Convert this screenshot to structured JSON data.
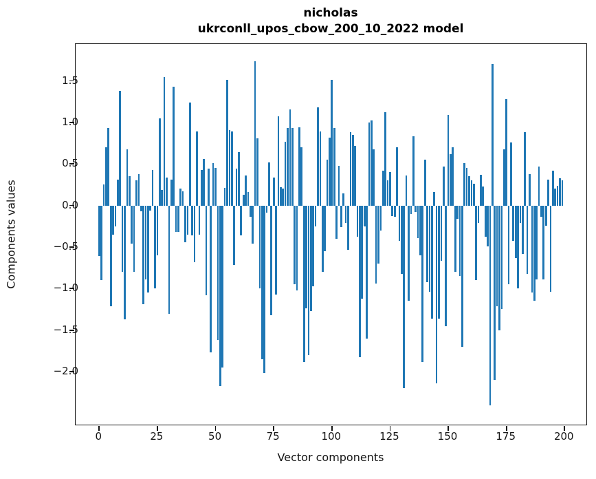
{
  "title": {
    "line1": "nicholas",
    "line2": "ukrconll_upos_cbow_200_10_2022 model"
  },
  "axes": {
    "xlabel": "Vector components",
    "ylabel": "Components values",
    "x_ticks": [
      {
        "value": 0,
        "label": "0"
      },
      {
        "value": 25,
        "label": "25"
      },
      {
        "value": 50,
        "label": "50"
      },
      {
        "value": 75,
        "label": "75"
      },
      {
        "value": 100,
        "label": "100"
      },
      {
        "value": 125,
        "label": "125"
      },
      {
        "value": 150,
        "label": "150"
      },
      {
        "value": 175,
        "label": "175"
      },
      {
        "value": 200,
        "label": "200"
      }
    ],
    "y_ticks": [
      {
        "value": 1.5,
        "label": "1.5"
      },
      {
        "value": 1.0,
        "label": "1.0"
      },
      {
        "value": 0.5,
        "label": "0.5"
      },
      {
        "value": 0.0,
        "label": "0.0"
      },
      {
        "value": -0.5,
        "label": "−0.5"
      },
      {
        "value": -1.0,
        "label": "−1.0"
      },
      {
        "value": -1.5,
        "label": "−1.5"
      },
      {
        "value": -2.0,
        "label": "−2.0"
      }
    ]
  },
  "style": {
    "bar_color": "#1f77b4",
    "spine_color": "#141414",
    "background": "#ffffff"
  },
  "chart_data": {
    "type": "bar",
    "title": "nicholas\nukrconll_upos_cbow_200_10_2022 model",
    "xlabel": "Vector components",
    "ylabel": "Components values",
    "xlim": [
      -10,
      209.5
    ],
    "ylim": [
      -2.64,
      1.94
    ],
    "grid": false,
    "legend": "none",
    "n_components": 200,
    "x_start": 0,
    "values": [
      -0.61,
      -0.9,
      0.25,
      0.7,
      0.93,
      -1.21,
      -0.35,
      -0.25,
      0.31,
      1.38,
      -0.8,
      -1.37,
      0.68,
      0.35,
      -0.46,
      -0.8,
      0.3,
      0.38,
      -0.07,
      -1.19,
      -0.89,
      -1.05,
      -0.06,
      0.43,
      -1.0,
      -0.6,
      1.05,
      0.19,
      1.55,
      0.34,
      -1.3,
      0.31,
      1.43,
      -0.32,
      -0.32,
      0.2,
      0.17,
      -0.44,
      -0.35,
      1.24,
      -0.36,
      -0.68,
      0.89,
      -0.35,
      0.43,
      0.56,
      -1.08,
      0.44,
      -1.77,
      0.51,
      0.45,
      -1.62,
      -2.17,
      -1.95,
      0.21,
      1.51,
      0.91,
      0.89,
      -0.72,
      0.44,
      0.64,
      -0.36,
      0.13,
      0.36,
      0.16,
      -0.14,
      -0.46,
      1.74,
      0.81,
      -1.0,
      -1.85,
      -2.02,
      -0.09,
      0.52,
      -1.32,
      0.34,
      -1.07,
      1.07,
      0.22,
      0.2,
      0.77,
      0.93,
      1.16,
      0.93,
      -0.95,
      -1.02,
      0.94,
      0.7,
      -1.88,
      -1.24,
      -1.8,
      -1.27,
      -0.97,
      -0.25,
      1.18,
      0.89,
      -0.8,
      -0.55,
      0.55,
      0.82,
      1.51,
      0.93,
      -0.4,
      0.48,
      -0.26,
      0.15,
      -0.21,
      -0.53,
      0.88,
      0.85,
      0.72,
      -0.38,
      -1.83,
      -1.12,
      -0.25,
      -1.6,
      1.0,
      1.02,
      0.68,
      -0.94,
      -0.7,
      -0.3,
      0.42,
      1.12,
      0.3,
      0.4,
      -0.13,
      -0.14,
      0.7,
      -0.43,
      -0.82,
      -2.2,
      0.36,
      -1.15,
      -0.1,
      0.83,
      -0.08,
      -0.39,
      -0.6,
      -1.88,
      0.55,
      -0.92,
      -1.04,
      -1.36,
      0.16,
      -2.14,
      -1.36,
      -0.67,
      0.47,
      -1.45,
      1.09,
      0.62,
      0.7,
      -0.8,
      -0.16,
      -0.85,
      -1.7,
      0.51,
      0.45,
      0.35,
      0.3,
      0.26,
      -0.9,
      -0.21,
      0.37,
      0.23,
      -0.38,
      -0.49,
      -2.41,
      1.7,
      -2.1,
      -1.21,
      -1.5,
      -1.25,
      0.68,
      1.28,
      -0.95,
      0.76,
      -0.43,
      -0.63,
      -1.0,
      -0.21,
      -0.58,
      0.88,
      -0.82,
      0.38,
      -1.05,
      -1.15,
      -0.89,
      0.47,
      -0.14,
      -0.89,
      -0.24,
      0.31,
      -1.04,
      0.42,
      0.2,
      0.24,
      0.33,
      0.3
    ]
  }
}
